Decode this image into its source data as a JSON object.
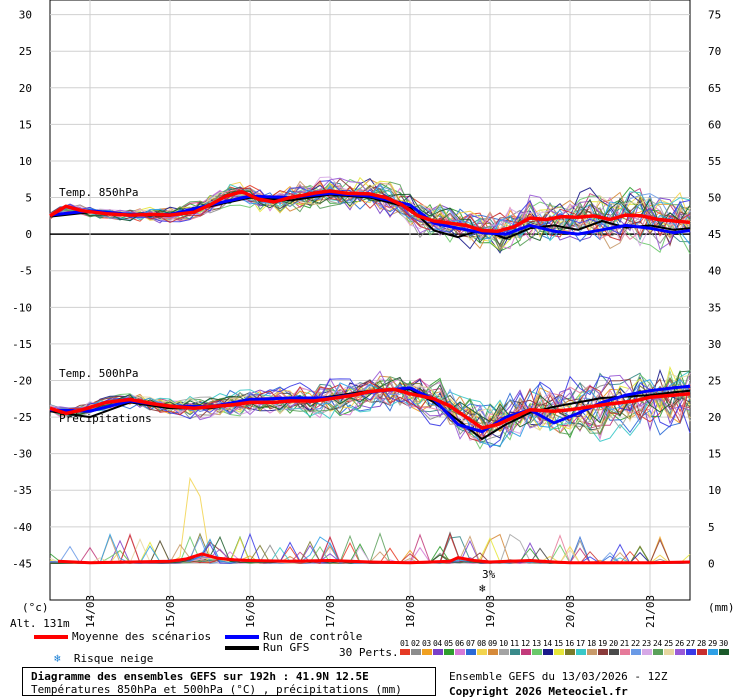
{
  "chart_data": {
    "type": "line",
    "x_ticks": [
      "14/03",
      "15/03",
      "16/03",
      "17/03",
      "18/03",
      "19/03",
      "20/03",
      "21/03"
    ],
    "x_range_days": [
      13.5,
      21.5
    ],
    "left_axis": {
      "unit": "(°c)",
      "range": [
        -50,
        32
      ],
      "ticks": [
        30,
        25,
        20,
        15,
        10,
        5,
        0,
        -5,
        -10,
        -15,
        -20,
        -25,
        -30,
        -35,
        -40,
        -45
      ]
    },
    "right_axis": {
      "unit": "(mm)",
      "ticks": [
        75,
        70,
        65,
        60,
        55,
        50,
        45,
        40,
        35,
        30,
        25,
        20,
        15,
        10,
        5,
        0
      ]
    },
    "labels": {
      "t850": "Temp. 850hPa",
      "t500": "Temp. 500hPa",
      "precip": "Précipitations",
      "altitude": "Alt. 131m",
      "snow_marker": "3%"
    },
    "mean_t850": {
      "name": "Moyenne des scénarios",
      "x": [
        13.5,
        13.7,
        13.9,
        14.2,
        14.5,
        14.8,
        15.0,
        15.3,
        15.5,
        15.7,
        15.9,
        16.1,
        16.3,
        16.5,
        16.8,
        17.0,
        17.2,
        17.5,
        17.7,
        17.9,
        18.1,
        18.3,
        18.5,
        18.7,
        18.9,
        19.1,
        19.3,
        19.5,
        19.7,
        19.9,
        20.1,
        20.3,
        20.5,
        20.7,
        20.9,
        21.1,
        21.3,
        21.5
      ],
      "y": [
        2.5,
        3.8,
        3.2,
        2.8,
        2.6,
        2.7,
        2.6,
        3.0,
        4.0,
        5.2,
        5.8,
        4.8,
        4.4,
        5.0,
        5.6,
        5.9,
        5.6,
        5.5,
        5.0,
        4.0,
        2.5,
        1.8,
        1.5,
        1.2,
        0.5,
        0.4,
        1.0,
        2.2,
        2.0,
        2.4,
        2.3,
        2.5,
        2.0,
        2.6,
        2.5,
        2.0,
        1.8,
        1.6
      ]
    },
    "control_t850": {
      "name": "Run de contrôle",
      "x": [
        13.5,
        14.0,
        14.5,
        15.0,
        15.5,
        16.0,
        16.5,
        17.0,
        17.5,
        18.0,
        18.3,
        18.6,
        18.9,
        19.2,
        19.5,
        19.8,
        20.1,
        20.4,
        20.7,
        21.0,
        21.3,
        21.5
      ],
      "y": [
        2.6,
        3.2,
        2.7,
        2.7,
        4.0,
        5.2,
        5.0,
        5.6,
        5.2,
        4.0,
        1.5,
        0.8,
        0.2,
        0.0,
        1.2,
        0.4,
        0.0,
        0.6,
        1.2,
        0.8,
        0.2,
        0.5
      ]
    },
    "gfs_t850": {
      "name": "Run GFS",
      "x": [
        13.5,
        14.0,
        14.5,
        15.0,
        15.5,
        16.0,
        16.5,
        17.0,
        17.5,
        18.0,
        18.3,
        18.6,
        18.9,
        19.2,
        19.5,
        19.8,
        20.1,
        20.4,
        20.7,
        21.0,
        21.3,
        21.5
      ],
      "y": [
        2.4,
        3.0,
        2.6,
        2.5,
        3.8,
        5.0,
        4.6,
        5.4,
        5.0,
        3.6,
        0.5,
        -0.4,
        0.6,
        -0.6,
        0.8,
        1.2,
        0.6,
        1.8,
        0.9,
        1.2,
        0.6,
        0.8
      ]
    },
    "mean_t500": {
      "name": "Moyenne des scénarios",
      "x": [
        13.5,
        13.7,
        13.9,
        14.2,
        14.5,
        14.8,
        15.0,
        15.3,
        15.5,
        15.8,
        16.0,
        16.3,
        16.5,
        16.8,
        17.0,
        17.3,
        17.5,
        17.8,
        18.0,
        18.3,
        18.5,
        18.7,
        18.9,
        19.1,
        19.3,
        19.5,
        19.8,
        20.0,
        20.3,
        20.5,
        20.8,
        21.0,
        21.3,
        21.5
      ],
      "y": [
        -23.8,
        -24.5,
        -24.0,
        -23.0,
        -22.6,
        -23.2,
        -23.5,
        -23.8,
        -23.6,
        -23.3,
        -23.0,
        -23.0,
        -22.8,
        -22.8,
        -22.5,
        -22.0,
        -21.5,
        -21.2,
        -21.8,
        -22.5,
        -23.5,
        -25.0,
        -26.5,
        -26.0,
        -25.0,
        -24.0,
        -24.2,
        -24.0,
        -23.5,
        -23.2,
        -22.8,
        -22.3,
        -22.0,
        -21.8
      ]
    },
    "control_t500": {
      "name": "Run de contrôle",
      "x": [
        13.5,
        14.0,
        14.5,
        15.0,
        15.5,
        16.0,
        16.5,
        17.0,
        17.5,
        18.0,
        18.3,
        18.6,
        18.9,
        19.2,
        19.5,
        19.8,
        20.1,
        20.4,
        20.7,
        21.0,
        21.3,
        21.5
      ],
      "y": [
        -24.0,
        -24.2,
        -22.8,
        -23.5,
        -23.6,
        -22.6,
        -22.4,
        -22.4,
        -21.6,
        -21.0,
        -22.6,
        -26.0,
        -27.0,
        -25.0,
        -24.0,
        -25.8,
        -24.5,
        -23.0,
        -22.0,
        -21.4,
        -21.0,
        -20.8
      ]
    },
    "gfs_t500": {
      "name": "Run GFS",
      "x": [
        13.5,
        14.0,
        14.5,
        15.0,
        15.5,
        16.0,
        16.5,
        17.0,
        17.5,
        18.0,
        18.3,
        18.6,
        18.9,
        19.2,
        19.5,
        19.8,
        20.1,
        20.4,
        20.7,
        21.0,
        21.3,
        21.5
      ],
      "y": [
        -24.2,
        -25.0,
        -23.0,
        -23.8,
        -23.8,
        -23.0,
        -22.8,
        -22.2,
        -21.4,
        -21.2,
        -23.0,
        -25.4,
        -28.0,
        -26.0,
        -24.4,
        -23.6,
        -23.0,
        -22.4,
        -22.2,
        -22.0,
        -21.6,
        -21.4
      ]
    },
    "mean_precip_mm": {
      "name": "Moyenne des scénarios",
      "x": [
        13.6,
        14.0,
        14.5,
        15.0,
        15.2,
        15.4,
        15.6,
        15.8,
        16.0,
        16.5,
        17.0,
        17.5,
        18.0,
        18.5,
        18.6,
        18.8,
        19.0,
        19.5,
        19.8,
        20.0,
        20.5,
        21.0,
        21.5
      ],
      "y": [
        0.3,
        0.1,
        0.2,
        0.3,
        0.6,
        1.3,
        0.7,
        0.5,
        0.4,
        0.3,
        0.4,
        0.2,
        0.1,
        0.3,
        0.8,
        0.4,
        0.2,
        0.4,
        0.2,
        0.1,
        0.1,
        0.1,
        0.2
      ]
    },
    "snow_marker_day": 18.95,
    "members": {
      "label": "30 Perts.",
      "numbers": [
        "01",
        "02",
        "03",
        "04",
        "05",
        "06",
        "07",
        "08",
        "09",
        "10",
        "11",
        "12",
        "13",
        "14",
        "15",
        "16",
        "17",
        "18",
        "19",
        "20",
        "21",
        "22",
        "23",
        "24",
        "25",
        "26",
        "27",
        "28",
        "29",
        "30"
      ],
      "colors": [
        "#e63a24",
        "#8c8c8c",
        "#f0a020",
        "#7a3fc8",
        "#2e9e2e",
        "#d67ad6",
        "#2a6ad6",
        "#f2d44e",
        "#d68a3a",
        "#a3a3a3",
        "#3a8a8a",
        "#c23a7a",
        "#6ac86a",
        "#1a1a8a",
        "#e6e63a",
        "#7a7a2a",
        "#3ac8c8",
        "#c89a6a",
        "#8a3a3a",
        "#4a4a4a",
        "#e67a9a",
        "#6a9ae6",
        "#d6a8e6",
        "#5aa05a",
        "#e6d6a0",
        "#9a5ad6",
        "#3a3ae6",
        "#c82e2e",
        "#2ea0e6",
        "#1a5a2a"
      ]
    },
    "colors": {
      "mean": "#ff0000",
      "control": "#0000ff",
      "gfs": "#000000",
      "snow": "#1a7fd4"
    }
  },
  "legend": {
    "mean": "Moyenne des scénarios",
    "control": "Run de contrôle",
    "gfs": "Run GFS",
    "snow": "Risque neige"
  },
  "footer": {
    "title": "Diagramme des ensembles GEFS sur 192h : 41.9N 12.5E",
    "subtitle": "Températures 850hPa et 500hPa (°C) , précipitations (mm)",
    "run_info": "Ensemble GEFS du 13/03/2026 - 12Z",
    "copyright": "Copyright 2026 Meteociel.fr"
  }
}
